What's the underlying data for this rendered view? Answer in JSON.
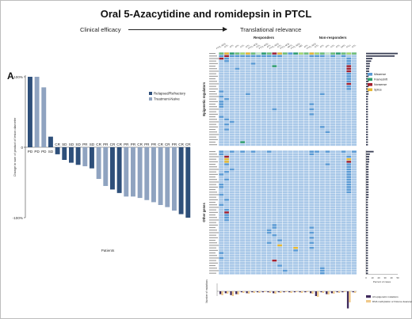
{
  "header": {
    "title": "Oral 5-Azacytidine and romidepsin in PTCL",
    "left_caption": "Clinical efficacy",
    "right_caption": "Translational relevance"
  },
  "panel_a": {
    "label": "A"
  },
  "chart_data": [
    {
      "type": "bar",
      "title": "",
      "xlabel": "Patients",
      "ylabel": "Change in sum of product of lesion diameter",
      "ylim": [
        -100,
        100
      ],
      "yticks": [
        "100%",
        "0",
        "-100%"
      ],
      "legend": {
        "position": "top-right",
        "entries": [
          "Relapsed/Refractory",
          "Treatment-Naïve"
        ]
      },
      "colors": {
        "Relapsed/Refractory": "#2e4f7a",
        "Treatment-Naïve": "#8fa3c0"
      },
      "categories": [
        "PD",
        "PD",
        "PD",
        "SD",
        "CR",
        "SD",
        "SD",
        "SD",
        "PR",
        "SD",
        "CR",
        "PR",
        "CR",
        "CR",
        "PR",
        "PR",
        "CR",
        "PR",
        "PR",
        "CR",
        "CR",
        "PR",
        "CR",
        "CR"
      ],
      "values": [
        100,
        100,
        85,
        15,
        -10,
        -18,
        -22,
        -25,
        -27,
        -30,
        -45,
        -55,
        -60,
        -65,
        -70,
        -70,
        -72,
        -75,
        -78,
        -82,
        -85,
        -90,
        -95,
        -100
      ],
      "group": [
        "RR",
        "TN",
        "TN",
        "RR",
        "RR",
        "RR",
        "RR",
        "RR",
        "TN",
        "RR",
        "TN",
        "TN",
        "RR",
        "RR",
        "TN",
        "TN",
        "TN",
        "TN",
        "TN",
        "TN",
        "TN",
        "TN",
        "RR",
        "RR"
      ]
    },
    {
      "type": "heatmap",
      "title": "",
      "groups": [
        {
          "name": "Responders",
          "subtypes": [
            "PTCL-NOS",
            "AITL",
            "AITL",
            "AITL",
            "AITL",
            "AITL",
            "PTCL-NOS",
            "AITL",
            "PTCL-NOS",
            "AITL",
            "PTCL-NOS",
            "AITL",
            "PTCL-NOS",
            "NKTL",
            "PTCL-NOS",
            "MEI",
            "AITL"
          ]
        },
        {
          "name": "Non-responders",
          "subtypes": [
            "PTCL-NOS",
            "AITL",
            "AITL",
            "AITL",
            "AITL",
            "AITL",
            "EATL",
            "ATLL",
            "AITL"
          ]
        }
      ],
      "row_sections": [
        "Epigenetic regulators",
        "Other genes"
      ],
      "legend": {
        "position": "right",
        "entries": [
          "Missense",
          "Frameshift",
          "Nonsense",
          "Splice"
        ]
      },
      "colors": {
        "cell": "#a9c8e8",
        "Missense": "#5b9bd5",
        "Frameshift": "#2e9e6b",
        "Nonsense": "#a3202f",
        "Splice": "#e8b830"
      },
      "side_bar": {
        "xlabel": "Percent of cases",
        "ticks": [
          "0",
          "10",
          "20",
          "30",
          "40",
          "50"
        ]
      },
      "bottom_plot": {
        "ylabel": "Number of mutations",
        "legend": {
          "position": "bottom-right",
          "entries": [
            "All epigenetic mutations",
            "DNA methylation or histone deacetylation"
          ]
        }
      }
    }
  ]
}
